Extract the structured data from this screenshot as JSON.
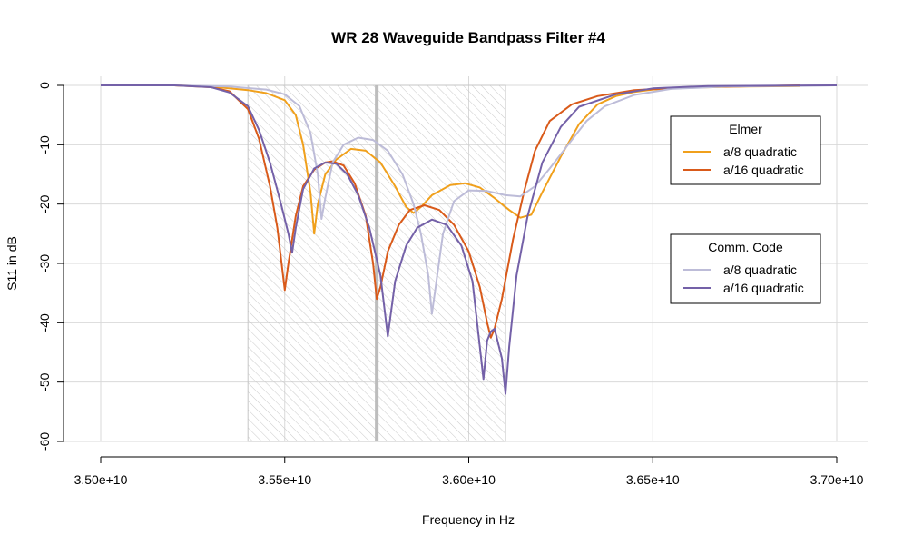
{
  "chart_data": {
    "type": "line",
    "title": "WR 28 Waveguide Bandpass Filter #4",
    "xlabel": "Frequency in Hz",
    "ylabel": "S11 in dB",
    "xlim": [
      35000000000.0,
      37000000000.0
    ],
    "ylim": [
      -60,
      0
    ],
    "x_ticks": [
      35000000000.0,
      35500000000.0,
      36000000000.0,
      36500000000.0,
      37000000000.0
    ],
    "x_tick_labels": [
      "3.50e+10",
      "3.55e+10",
      "3.60e+10",
      "3.65e+10",
      "3.70e+10"
    ],
    "y_ticks": [
      0,
      -10,
      -20,
      -30,
      -40,
      -50,
      -60
    ],
    "y_tick_labels": [
      "0",
      "-10",
      "-20",
      "-30",
      "-40",
      "-50",
      "-60"
    ],
    "grid": true,
    "passband": {
      "x_start": 35400000000.0,
      "x_end": 36100000000.0,
      "y_bottom": -60,
      "y_top": 0,
      "center": 35750000000.0
    },
    "colors": {
      "elmer_a8": "#f0a01c",
      "elmer_a16": "#d95a1a",
      "comm_a8": "#bdbcd8",
      "comm_a16": "#7461a8",
      "passband_hatch": "#bfbfbf",
      "center_line": "#bdbdbd",
      "grid": "#d9d9d9"
    },
    "legends": [
      {
        "title": "Elmer",
        "position": "top-right",
        "entries": [
          {
            "label": "a/8 quadratic",
            "color_key": "elmer_a8"
          },
          {
            "label": "a/16 quadratic",
            "color_key": "elmer_a16"
          }
        ]
      },
      {
        "title": "Comm. Code",
        "position": "right",
        "entries": [
          {
            "label": "a/8 quadratic",
            "color_key": "comm_a8"
          },
          {
            "label": "a/16 quadratic",
            "color_key": "comm_a16"
          }
        ]
      }
    ],
    "series": [
      {
        "name": "Elmer a/8 quadratic",
        "color_key": "elmer_a8",
        "points": [
          [
            35000000000.0,
            0
          ],
          [
            35200000000.0,
            0
          ],
          [
            35300000000.0,
            -0.2
          ],
          [
            35400000000.0,
            -0.8
          ],
          [
            35450000000.0,
            -1.3
          ],
          [
            35500000000.0,
            -2.5
          ],
          [
            35530000000.0,
            -5
          ],
          [
            35550000000.0,
            -10
          ],
          [
            35570000000.0,
            -18
          ],
          [
            35580000000.0,
            -25
          ],
          [
            35590000000.0,
            -20
          ],
          [
            35610000000.0,
            -15
          ],
          [
            35640000000.0,
            -12.5
          ],
          [
            35680000000.0,
            -10.7
          ],
          [
            35720000000.0,
            -11
          ],
          [
            35760000000.0,
            -13
          ],
          [
            35800000000.0,
            -17
          ],
          [
            35830000000.0,
            -20.5
          ],
          [
            35850000000.0,
            -21.5
          ],
          [
            35870000000.0,
            -20.5
          ],
          [
            35900000000.0,
            -18.5
          ],
          [
            35950000000.0,
            -16.8
          ],
          [
            35990000000.0,
            -16.5
          ],
          [
            36030000000.0,
            -17.2
          ],
          [
            36070000000.0,
            -19
          ],
          [
            36110000000.0,
            -21
          ],
          [
            36140000000.0,
            -22.3
          ],
          [
            36170000000.0,
            -21.8
          ],
          [
            36200000000.0,
            -18
          ],
          [
            36250000000.0,
            -12
          ],
          [
            36300000000.0,
            -6.5
          ],
          [
            36350000000.0,
            -3.2
          ],
          [
            36400000000.0,
            -1.8
          ],
          [
            36450000000.0,
            -1.1
          ],
          [
            36500000000.0,
            -0.7
          ],
          [
            36600000000.0,
            -0.4
          ],
          [
            36750000000.0,
            -0.2
          ],
          [
            36900000000.0,
            -0.1
          ]
        ]
      },
      {
        "name": "Elmer a/16 quadratic",
        "color_key": "elmer_a16",
        "points": [
          [
            35000000000.0,
            0
          ],
          [
            35200000000.0,
            0
          ],
          [
            35300000000.0,
            -0.3
          ],
          [
            35350000000.0,
            -1
          ],
          [
            35400000000.0,
            -4
          ],
          [
            35430000000.0,
            -9
          ],
          [
            35460000000.0,
            -17
          ],
          [
            35480000000.0,
            -24
          ],
          [
            35500000000.0,
            -34.5
          ],
          [
            35510000000.0,
            -30
          ],
          [
            35530000000.0,
            -22
          ],
          [
            35550000000.0,
            -17
          ],
          [
            35580000000.0,
            -14.2
          ],
          [
            35610000000.0,
            -13
          ],
          [
            35630000000.0,
            -12.8
          ],
          [
            35660000000.0,
            -13.5
          ],
          [
            35690000000.0,
            -16.5
          ],
          [
            35720000000.0,
            -22
          ],
          [
            35740000000.0,
            -30
          ],
          [
            35750000000.0,
            -36
          ],
          [
            35760000000.0,
            -34
          ],
          [
            35780000000.0,
            -28
          ],
          [
            35810000000.0,
            -23.5
          ],
          [
            35840000000.0,
            -21
          ],
          [
            35880000000.0,
            -20.2
          ],
          [
            35920000000.0,
            -21
          ],
          [
            35960000000.0,
            -23.5
          ],
          [
            36000000000.0,
            -28
          ],
          [
            36030000000.0,
            -34
          ],
          [
            36050000000.0,
            -40
          ],
          [
            36060000000.0,
            -42.5
          ],
          [
            36070000000.0,
            -41
          ],
          [
            36090000000.0,
            -36
          ],
          [
            36120000000.0,
            -26
          ],
          [
            36150000000.0,
            -18
          ],
          [
            36180000000.0,
            -11
          ],
          [
            36220000000.0,
            -6
          ],
          [
            36280000000.0,
            -3.2
          ],
          [
            36350000000.0,
            -1.8
          ],
          [
            36450000000.0,
            -0.8
          ],
          [
            36600000000.0,
            -0.3
          ],
          [
            36800000000.0,
            -0.1
          ],
          [
            36900000000.0,
            0
          ]
        ]
      },
      {
        "name": "Comm. Code a/8 quadratic",
        "color_key": "comm_a8",
        "points": [
          [
            35000000000.0,
            0
          ],
          [
            35200000000.0,
            0
          ],
          [
            35350000000.0,
            -0.2
          ],
          [
            35450000000.0,
            -0.7
          ],
          [
            35500000000.0,
            -1.5
          ],
          [
            35540000000.0,
            -3.5
          ],
          [
            35570000000.0,
            -8
          ],
          [
            35590000000.0,
            -15
          ],
          [
            35600000000.0,
            -22.5
          ],
          [
            35610000000.0,
            -19
          ],
          [
            35630000000.0,
            -13
          ],
          [
            35660000000.0,
            -10
          ],
          [
            35700000000.0,
            -8.8
          ],
          [
            35740000000.0,
            -9.2
          ],
          [
            35780000000.0,
            -11
          ],
          [
            35820000000.0,
            -15
          ],
          [
            35850000000.0,
            -20
          ],
          [
            35870000000.0,
            -25
          ],
          [
            35890000000.0,
            -32
          ],
          [
            35900000000.0,
            -38.5
          ],
          [
            35910000000.0,
            -34
          ],
          [
            35930000000.0,
            -25
          ],
          [
            35960000000.0,
            -19.5
          ],
          [
            36000000000.0,
            -17.7
          ],
          [
            36050000000.0,
            -17.8
          ],
          [
            36100000000.0,
            -18.5
          ],
          [
            36140000000.0,
            -18.7
          ],
          [
            36180000000.0,
            -17
          ],
          [
            36220000000.0,
            -14
          ],
          [
            36270000000.0,
            -10
          ],
          [
            36320000000.0,
            -6
          ],
          [
            36370000000.0,
            -3.5
          ],
          [
            36450000000.0,
            -1.6
          ],
          [
            36550000000.0,
            -0.6
          ],
          [
            36700000000.0,
            -0.2
          ],
          [
            37000000000.0,
            0
          ]
        ]
      },
      {
        "name": "Comm. Code a/16 quadratic",
        "color_key": "comm_a16",
        "points": [
          [
            35000000000.0,
            0
          ],
          [
            35200000000.0,
            0
          ],
          [
            35300000000.0,
            -0.3
          ],
          [
            35350000000.0,
            -1.2
          ],
          [
            35400000000.0,
            -3.5
          ],
          [
            35430000000.0,
            -7.5
          ],
          [
            35460000000.0,
            -13
          ],
          [
            35490000000.0,
            -20
          ],
          [
            35510000000.0,
            -25
          ],
          [
            35520000000.0,
            -28.2
          ],
          [
            35530000000.0,
            -24
          ],
          [
            35550000000.0,
            -17.5
          ],
          [
            35580000000.0,
            -14
          ],
          [
            35610000000.0,
            -13
          ],
          [
            35640000000.0,
            -13.2
          ],
          [
            35670000000.0,
            -15
          ],
          [
            35700000000.0,
            -18.5
          ],
          [
            35730000000.0,
            -24
          ],
          [
            35760000000.0,
            -32
          ],
          [
            35780000000.0,
            -42.3
          ],
          [
            35800000000.0,
            -33
          ],
          [
            35830000000.0,
            -27
          ],
          [
            35860000000.0,
            -24
          ],
          [
            35900000000.0,
            -22.6
          ],
          [
            35940000000.0,
            -23.5
          ],
          [
            35980000000.0,
            -27
          ],
          [
            36010000000.0,
            -33
          ],
          [
            36040000000.0,
            -49.5
          ],
          [
            36050000000.0,
            -43
          ],
          [
            36060000000.0,
            -41.5
          ],
          [
            36070000000.0,
            -41
          ],
          [
            36090000000.0,
            -46
          ],
          [
            36100000000.0,
            -52
          ],
          [
            36110000000.0,
            -44
          ],
          [
            36130000000.0,
            -32
          ],
          [
            36160000000.0,
            -22
          ],
          [
            36200000000.0,
            -13
          ],
          [
            36250000000.0,
            -7
          ],
          [
            36300000000.0,
            -3.6
          ],
          [
            36400000000.0,
            -1.5
          ],
          [
            36500000000.0,
            -0.5
          ],
          [
            36650000000.0,
            -0.1
          ],
          [
            37000000000.0,
            0
          ]
        ]
      }
    ]
  }
}
